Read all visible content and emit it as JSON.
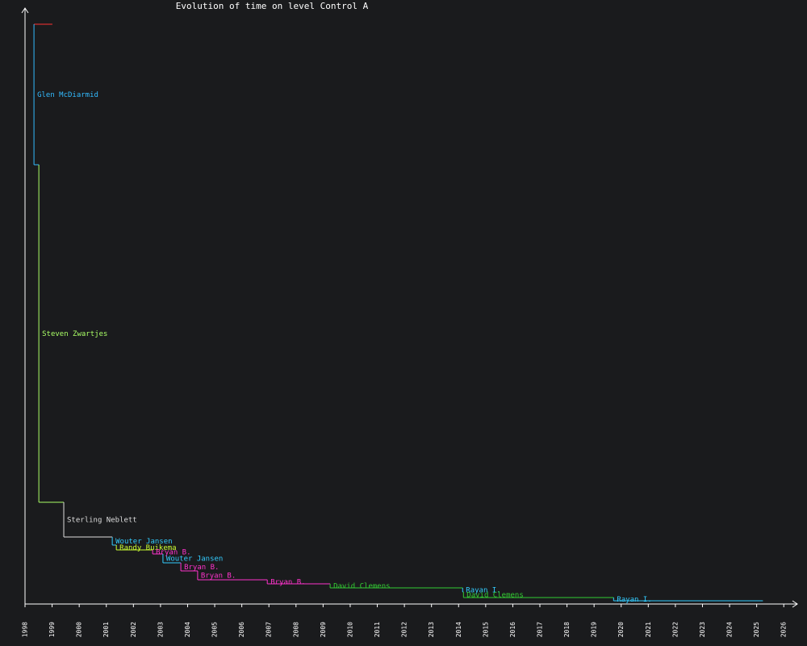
{
  "chart_data": {
    "type": "step",
    "title": "Evolution of time on level Control A",
    "xlim": [
      1998,
      2026.5
    ],
    "ylim": [
      0,
      740
    ],
    "xticks": [
      1998,
      1999,
      2000,
      2001,
      2002,
      2003,
      2004,
      2005,
      2006,
      2007,
      2008,
      2009,
      2010,
      2011,
      2012,
      2013,
      2014,
      2015,
      2016,
      2017,
      2018,
      2019,
      2020,
      2021,
      2022,
      2023,
      2024,
      2025,
      2026
    ],
    "records": [
      {
        "color": "#ff3333",
        "start": 1998.33,
        "end": 1999.01,
        "value": 718
      },
      {
        "holder": "Glen McDiarmid",
        "color": "#33bbff",
        "start": 1998.33,
        "end": 1998.51,
        "value": 544
      },
      {
        "holder": "Steven Zwartjes",
        "color": "#aaff66",
        "start": 1998.51,
        "end": 1999.43,
        "value": 126
      },
      {
        "holder": "Sterling Neblett",
        "color": "#dddddd",
        "start": 1999.43,
        "end": 2001.22,
        "value": 83
      },
      {
        "holder": "Wouter Jansen",
        "color": "#33ccff",
        "start": 2001.22,
        "end": 2001.37,
        "value": 73
      },
      {
        "holder": "Randy Buikema",
        "color": "#ccff33",
        "start": 2001.37,
        "end": 2002.71,
        "value": 67
      },
      {
        "holder": "Bryan B.",
        "color": "#ff33cc",
        "start": 2002.71,
        "end": 2003.09,
        "value": 62
      },
      {
        "holder": "Wouter Jansen",
        "color": "#33ccff",
        "start": 2003.09,
        "end": 2003.75,
        "value": 51
      },
      {
        "holder": "Bryan B.",
        "color": "#ff33cc",
        "start": 2003.75,
        "end": 2004.37,
        "value": 41
      },
      {
        "holder": "Bryan B.",
        "color": "#ff33cc",
        "start": 2004.37,
        "end": 2006.94,
        "value": 30
      },
      {
        "holder": "Bryan B.",
        "color": "#ff33cc",
        "start": 2006.94,
        "end": 2009.26,
        "value": 25
      },
      {
        "holder": "David Clemens",
        "color": "#33cc33",
        "start": 2009.26,
        "end": 2014.15,
        "value": 20
      },
      {
        "holder": "Rayan I.",
        "color": "#33ccff",
        "start": 2014.15,
        "end": 2014.18,
        "value": 15
      },
      {
        "holder": "David Clemens",
        "color": "#33cc33",
        "start": 2014.18,
        "end": 2019.72,
        "value": 8
      },
      {
        "holder": "Rayan I.",
        "color": "#33ccff",
        "start": 2019.72,
        "end": 2025.23,
        "value": 4
      }
    ]
  }
}
